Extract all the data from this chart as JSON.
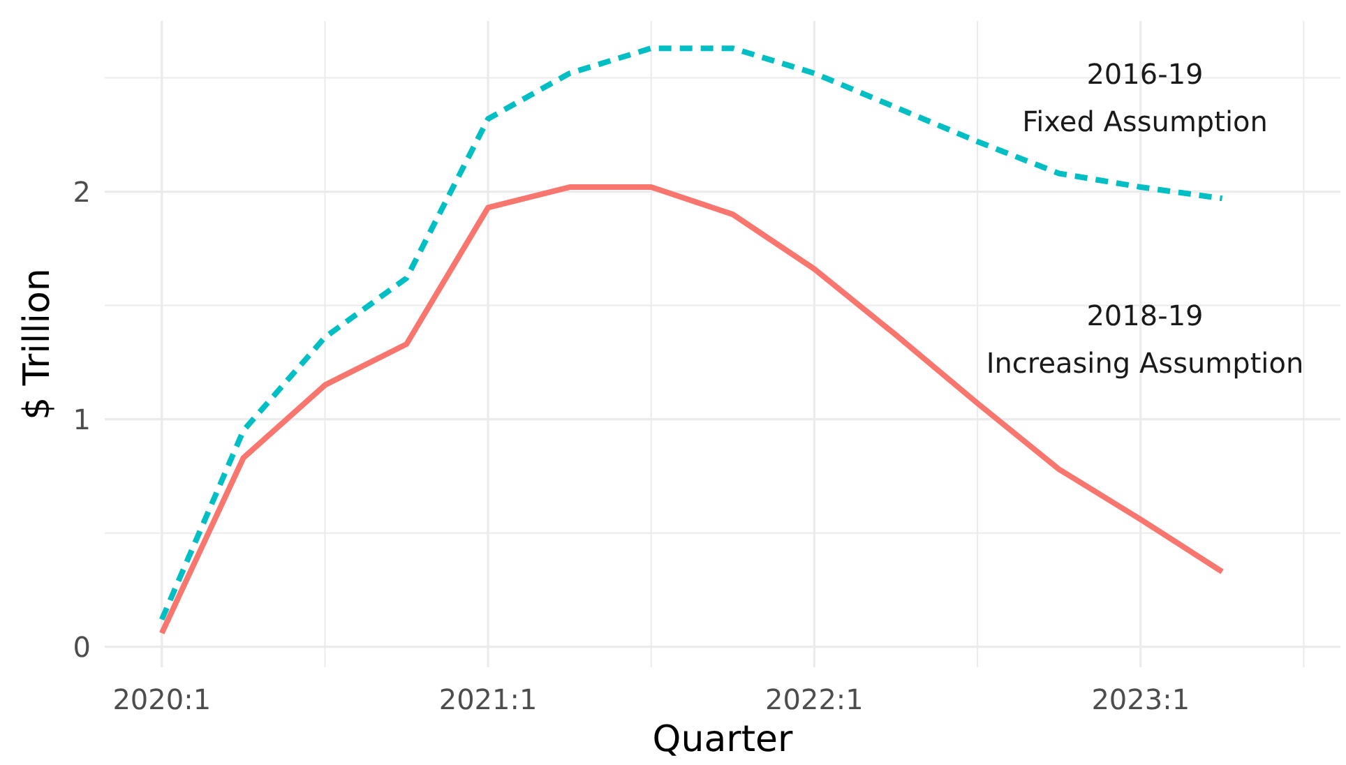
{
  "chart_data": {
    "type": "line",
    "xlabel": "Quarter",
    "ylabel": "$ Trillion",
    "categories": [
      "2020:1",
      null,
      null,
      null,
      "2021:1",
      null,
      null,
      null,
      "2022:1",
      null,
      null,
      null,
      "2023:1",
      null
    ],
    "series": [
      {
        "color": "#00bfc4",
        "line_style": "dashed",
        "values": [
          0.12,
          0.95,
          1.36,
          1.62,
          2.32,
          2.52,
          2.63,
          2.63,
          2.52,
          2.37,
          2.22,
          2.08,
          2.02,
          1.97
        ]
      },
      {
        "color": "#f8766d",
        "line_style": "solid",
        "values": [
          0.06,
          0.83,
          1.15,
          1.33,
          1.93,
          2.02,
          2.02,
          1.9,
          1.66,
          1.37,
          1.07,
          0.78,
          0.56,
          0.33
        ]
      }
    ],
    "ylim": [
      -0.09,
      2.75
    ],
    "yticks": [
      0,
      {
        "value": 0.5,
        "label": null
      },
      1,
      {
        "value": 1.5,
        "label": null
      },
      2,
      {
        "value": 2.5,
        "label": null
      }
    ],
    "grid": true,
    "annotations": [
      "2016-19\nFixed Assumption",
      "2018-19\nIncreasing Assumption"
    ]
  }
}
